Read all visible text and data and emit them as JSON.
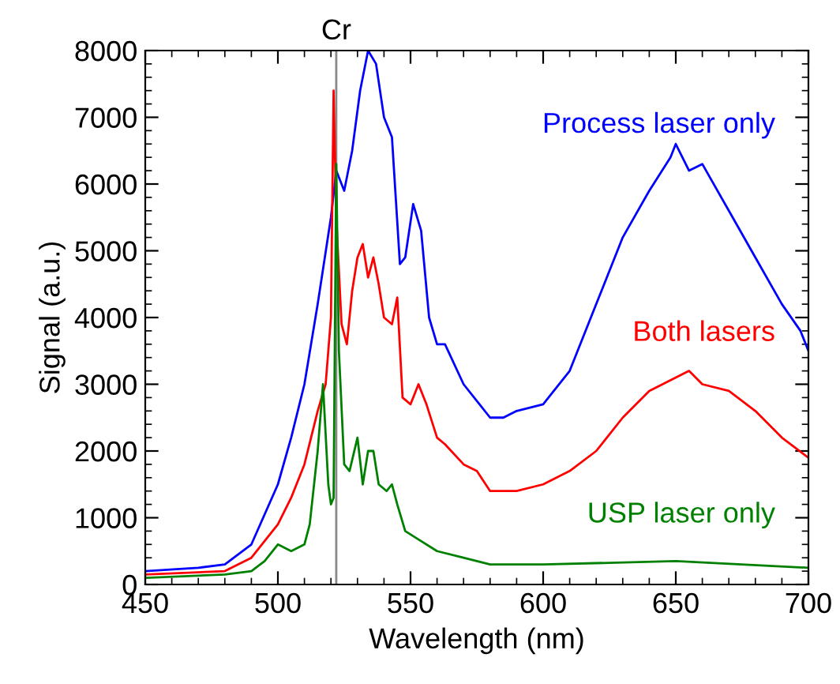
{
  "chart_data": {
    "type": "line",
    "xlabel": "Wavelength (nm)",
    "ylabel": "Signal (a.u.)",
    "xlim": [
      450,
      700
    ],
    "xticks": [
      450,
      500,
      550,
      600,
      650,
      700
    ],
    "ylim": [
      0,
      8000
    ],
    "yticks": [
      0,
      1000,
      2000,
      3000,
      4000,
      5000,
      6000,
      7000,
      8000
    ],
    "grid": false,
    "legend": false,
    "marker": "none",
    "line_style": "solid",
    "ref_lines": [
      {
        "axis": "x",
        "value": 522,
        "label": "Cr",
        "color": "#888888"
      }
    ],
    "series": [
      {
        "name": "Process laser only",
        "color": "#0000ff",
        "x": [
          450,
          470,
          480,
          490,
          500,
          505,
          510,
          515,
          520,
          522,
          525,
          528,
          531,
          534,
          537,
          540,
          543,
          546,
          548,
          551,
          554,
          557,
          560,
          563,
          570,
          580,
          585,
          590,
          600,
          610,
          620,
          630,
          640,
          648,
          650,
          655,
          660,
          670,
          680,
          690,
          697,
          700
        ],
        "values": [
          200,
          250,
          300,
          600,
          1500,
          2200,
          3000,
          4200,
          5500,
          6200,
          5900,
          6500,
          7400,
          8000,
          7800,
          7000,
          6700,
          4800,
          4900,
          5700,
          5300,
          4000,
          3600,
          3600,
          3000,
          2500,
          2500,
          2600,
          2700,
          3200,
          4200,
          5200,
          5900,
          6400,
          6600,
          6200,
          6300,
          5600,
          4900,
          4200,
          3800,
          3500
        ]
      },
      {
        "name": "Both lasers",
        "color": "#ff0000",
        "x": [
          450,
          480,
          490,
          500,
          505,
          510,
          515,
          518,
          520,
          521,
          522,
          524,
          526,
          528,
          530,
          532,
          534,
          536,
          538,
          540,
          543,
          545,
          547,
          550,
          553,
          556,
          560,
          563,
          570,
          575,
          580,
          590,
          600,
          610,
          620,
          630,
          640,
          650,
          655,
          660,
          670,
          680,
          690,
          700
        ],
        "values": [
          150,
          200,
          400,
          900,
          1300,
          1800,
          2600,
          3000,
          4000,
          7400,
          5500,
          3900,
          3600,
          4400,
          4900,
          5100,
          4600,
          4900,
          4500,
          4000,
          3900,
          4300,
          2800,
          2700,
          3000,
          2700,
          2200,
          2100,
          1800,
          1700,
          1400,
          1400,
          1500,
          1700,
          2000,
          2500,
          2900,
          3100,
          3200,
          3000,
          2900,
          2600,
          2200,
          1900
        ]
      },
      {
        "name": "USP laser only",
        "color": "#008000",
        "x": [
          450,
          480,
          490,
          495,
          500,
          505,
          510,
          512,
          515,
          517,
          519,
          520,
          521,
          522,
          523,
          525,
          527,
          530,
          532,
          534,
          536,
          538,
          541,
          543,
          545,
          548,
          552,
          560,
          570,
          580,
          600,
          650,
          700
        ],
        "values": [
          100,
          150,
          200,
          350,
          600,
          500,
          600,
          900,
          2000,
          3000,
          1500,
          1200,
          1300,
          6300,
          3500,
          1800,
          1700,
          2200,
          1500,
          2000,
          2000,
          1500,
          1400,
          1500,
          1200,
          800,
          700,
          500,
          400,
          300,
          300,
          350,
          250
        ]
      }
    ]
  }
}
